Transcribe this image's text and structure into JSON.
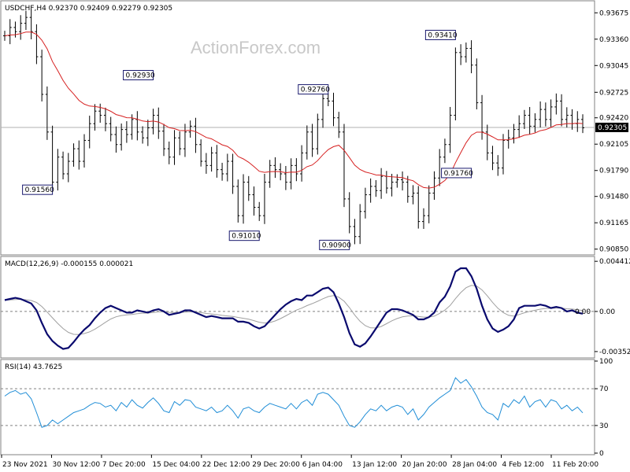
{
  "watermark": "ActionForex.com",
  "colors": {
    "price": "#000000",
    "ma": "#d62020",
    "macd": "#0a0a6e",
    "signal": "#a0a0a0",
    "rsi": "#1f8dd6",
    "label_border": "#1a1a6e",
    "current_line": "#b0b0b0",
    "grid": "#808080"
  },
  "chart_data": [
    {
      "type": "bar",
      "panel": "price",
      "header": "USDCHF,H4  0.92370 0.92409 0.92279 0.92305",
      "current_price_label": "0.92305",
      "ylim": [
        0.908,
        0.938
      ],
      "yticks": [
        "0.93675",
        "0.93360",
        "0.93045",
        "0.92725",
        "0.92420",
        "0.92105",
        "0.91790",
        "0.91480",
        "0.91165",
        "0.90850"
      ],
      "xticks": [
        "23 Nov 2021",
        "30 Nov 12:00",
        "7 Dec 20:00",
        "15 Dec 04:00",
        "22 Dec 12:00",
        "29 Dec 20:00",
        "6 Jan 04:00",
        "13 Jan 12:00",
        "20 Jan 20:00",
        "28 Jan 04:00",
        "4 Feb 12:00",
        "11 Feb 20:00"
      ],
      "annotations": [
        {
          "label": "0.92930",
          "idx": 28,
          "value": 0.9293,
          "side": "left"
        },
        {
          "label": "0.91560",
          "idx": 9,
          "value": 0.9156,
          "side": "left"
        },
        {
          "label": "0.92760",
          "idx": 61,
          "value": 0.9276,
          "side": "left"
        },
        {
          "label": "0.91010",
          "idx": 48,
          "value": 0.9101,
          "side": "left"
        },
        {
          "label": "0.90900",
          "idx": 65,
          "value": 0.909,
          "side": "left"
        },
        {
          "label": "0.93410",
          "idx": 85,
          "value": 0.9341,
          "side": "left"
        },
        {
          "label": "0.91760",
          "idx": 88,
          "value": 0.9176,
          "side": "left"
        }
      ],
      "close": [
        0.934,
        0.935,
        0.9345,
        0.9355,
        0.9362,
        0.9345,
        0.9315,
        0.927,
        0.9225,
        0.9165,
        0.9195,
        0.9175,
        0.919,
        0.9205,
        0.919,
        0.9215,
        0.9235,
        0.925,
        0.9245,
        0.9235,
        0.9222,
        0.921,
        0.9228,
        0.9222,
        0.924,
        0.9225,
        0.9218,
        0.923,
        0.9245,
        0.9226,
        0.9205,
        0.9195,
        0.9218,
        0.9205,
        0.9225,
        0.9232,
        0.921,
        0.919,
        0.9185,
        0.92,
        0.918,
        0.9175,
        0.919,
        0.916,
        0.9125,
        0.9165,
        0.915,
        0.9135,
        0.9125,
        0.9165,
        0.9185,
        0.918,
        0.9175,
        0.9165,
        0.9185,
        0.9175,
        0.92,
        0.9225,
        0.9205,
        0.924,
        0.9265,
        0.9262,
        0.9242,
        0.9225,
        0.9145,
        0.9112,
        0.91,
        0.913,
        0.915,
        0.916,
        0.9155,
        0.9172,
        0.9158,
        0.9165,
        0.9168,
        0.9165,
        0.9148,
        0.9152,
        0.9118,
        0.9125,
        0.9152,
        0.917,
        0.9195,
        0.921,
        0.9245,
        0.932,
        0.9315,
        0.9325,
        0.9305,
        0.926,
        0.9225,
        0.92,
        0.9188,
        0.9182,
        0.9215,
        0.9218,
        0.9228,
        0.9235,
        0.9245,
        0.9232,
        0.924,
        0.9252,
        0.924,
        0.9255,
        0.9262,
        0.924,
        0.9245,
        0.9235,
        0.924,
        0.923
      ]
    },
    {
      "type": "line",
      "panel": "macd",
      "header": "MACD(12,26,9) -0.000155 0.000021",
      "ylim": [
        -0.00395,
        0.0047
      ],
      "yticks": [
        "0.004412",
        "0.00",
        "-0.003528"
      ],
      "zero_label": "0.00",
      "macd": [
        0.001,
        0.0011,
        0.0012,
        0.0011,
        0.0009,
        0.0007,
        0.0001,
        -0.001,
        -0.002,
        -0.0026,
        -0.003,
        -0.0033,
        -0.0032,
        -0.0027,
        -0.0021,
        -0.0016,
        -0.0012,
        -0.0006,
        -0.0001,
        0.0003,
        0.0005,
        0.0003,
        0.0001,
        -0.0001,
        -0.0001,
        0.0001,
        0.0,
        -0.0001,
        0.0001,
        0.0002,
        0.0,
        -0.0003,
        -0.0002,
        -0.0001,
        0.0001,
        0.0001,
        -0.0001,
        -0.0003,
        -0.0005,
        -0.0004,
        -0.0005,
        -0.0006,
        -0.0006,
        -0.0006,
        -0.0009,
        -0.0009,
        -0.001,
        -0.0013,
        -0.0015,
        -0.0013,
        -0.0008,
        -0.0003,
        0.0002,
        0.0006,
        0.0009,
        0.0011,
        0.001,
        0.0014,
        0.0014,
        0.0017,
        0.002,
        0.0021,
        0.0017,
        0.0007,
        -0.0005,
        -0.0019,
        -0.0029,
        -0.0031,
        -0.0028,
        -0.0022,
        -0.0015,
        -0.0008,
        -0.0001,
        0.0002,
        0.0002,
        0.0001,
        -0.0001,
        -0.0003,
        -0.0007,
        -0.0007,
        -0.0005,
        -0.0001,
        0.0008,
        0.0013,
        0.0022,
        0.0035,
        0.0038,
        0.0038,
        0.0031,
        0.002,
        0.0005,
        -0.0007,
        -0.0015,
        -0.0018,
        -0.0016,
        -0.0013,
        -0.0007,
        0.0003,
        0.0005,
        0.0005,
        0.0005,
        0.0006,
        0.0005,
        0.0003,
        0.0004,
        0.0003,
        0.0,
        0.0001,
        -0.0001,
        -0.0002
      ]
    },
    {
      "type": "line",
      "panel": "rsi",
      "header": "RSI(14) 43.7625",
      "ylim": [
        0,
        100
      ],
      "yticks": [
        "100",
        "70",
        "30",
        "0"
      ],
      "levels": [
        70,
        30
      ],
      "rsi": [
        62,
        66,
        68,
        64,
        66,
        59,
        44,
        28,
        30,
        36,
        32,
        36,
        40,
        44,
        46,
        48,
        52,
        55,
        54,
        50,
        52,
        46,
        55,
        50,
        58,
        52,
        49,
        55,
        60,
        54,
        46,
        44,
        56,
        52,
        58,
        57,
        50,
        48,
        46,
        50,
        44,
        46,
        52,
        46,
        38,
        48,
        50,
        46,
        44,
        50,
        54,
        52,
        50,
        48,
        54,
        48,
        55,
        58,
        52,
        64,
        66,
        64,
        58,
        52,
        40,
        30,
        28,
        34,
        42,
        48,
        46,
        52,
        46,
        50,
        52,
        50,
        42,
        48,
        36,
        42,
        50,
        55,
        60,
        64,
        68,
        82,
        76,
        80,
        72,
        62,
        50,
        44,
        42,
        36,
        54,
        50,
        58,
        54,
        62,
        50,
        56,
        58,
        50,
        58,
        56,
        48,
        52,
        46,
        50,
        43.8
      ]
    }
  ]
}
